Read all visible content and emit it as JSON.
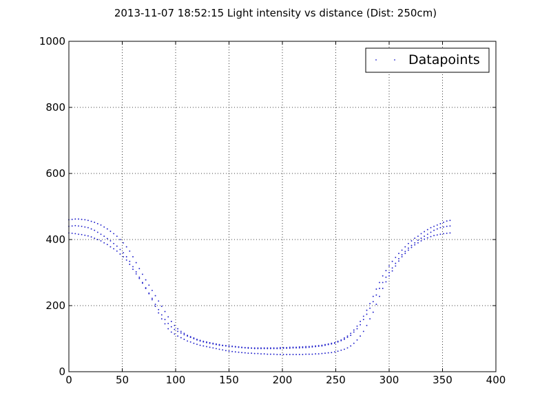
{
  "chart_data": {
    "type": "scatter",
    "title": "2013-11-07 18:52:15 Light intensity vs distance (Dist: 250cm)",
    "xlabel": "",
    "ylabel": "",
    "xlim": [
      0,
      400
    ],
    "ylim": [
      0,
      1000
    ],
    "xticks": [
      0,
      50,
      100,
      150,
      200,
      250,
      300,
      350,
      400
    ],
    "yticks": [
      0,
      200,
      400,
      600,
      800,
      1000
    ],
    "grid": true,
    "legend_position": "top-right",
    "point_color": "#2222cc",
    "series": [
      {
        "name": "Datapoints",
        "x": [
          0,
          3,
          6,
          9,
          12,
          15,
          18,
          21,
          24,
          27,
          30,
          33,
          36,
          39,
          42,
          45,
          48,
          51,
          54,
          57,
          60,
          63,
          66,
          69,
          72,
          75,
          78,
          81,
          84,
          87,
          90,
          93,
          96,
          99,
          102,
          105,
          108,
          111,
          114,
          117,
          120,
          123,
          126,
          129,
          132,
          135,
          138,
          141,
          144,
          147,
          150,
          153,
          156,
          159,
          162,
          165,
          168,
          171,
          174,
          177,
          180,
          183,
          186,
          189,
          192,
          195,
          198,
          201,
          204,
          207,
          210,
          213,
          216,
          219,
          222,
          225,
          228,
          231,
          234,
          237,
          240,
          243,
          246,
          249,
          252,
          255,
          258,
          261,
          264,
          267,
          270,
          273,
          276,
          279,
          282,
          285,
          288,
          291,
          294,
          297,
          300,
          303,
          306,
          309,
          312,
          315,
          318,
          321,
          324,
          327,
          330,
          333,
          336,
          339,
          342,
          345,
          348,
          351,
          354,
          357
        ],
        "y_set_1": [
          420,
          419,
          418,
          416,
          415,
          413,
          411,
          408,
          404,
          400,
          396,
          390,
          385,
          378,
          372,
          365,
          356,
          348,
          338,
          325,
          310,
          296,
          282,
          268,
          252,
          236,
          218,
          198,
          178,
          160,
          145,
          130,
          120,
          114,
          108,
          103,
          98,
          93,
          90,
          86,
          83,
          80,
          78,
          76,
          74,
          72,
          70,
          68,
          66,
          64,
          62,
          61,
          60,
          59,
          58,
          57,
          56,
          56,
          55,
          55,
          54,
          54,
          53,
          53,
          53,
          52,
          52,
          52,
          52,
          52,
          52,
          52,
          52,
          52,
          53,
          53,
          53,
          54,
          54,
          55,
          56,
          57,
          58,
          60,
          62,
          65,
          68,
          72,
          78,
          86,
          96,
          108,
          122,
          140,
          160,
          180,
          204,
          228,
          252,
          272,
          290,
          305,
          320,
          335,
          348,
          358,
          368,
          376,
          384,
          390,
          396,
          401,
          405,
          409,
          412,
          414,
          416,
          418,
          419,
          420
        ],
        "y_set_2": [
          440,
          441,
          442,
          441,
          440,
          438,
          436,
          432,
          428,
          422,
          416,
          410,
          403,
          396,
          388,
          380,
          370,
          360,
          348,
          334,
          318,
          302,
          286,
          270,
          254,
          238,
          222,
          204,
          188,
          172,
          158,
          146,
          136,
          128,
          122,
          117,
          112,
          108,
          104,
          100,
          96,
          93,
          90,
          88,
          86,
          84,
          82,
          80,
          79,
          78,
          77,
          76,
          75,
          74,
          73,
          72,
          71,
          71,
          70,
          70,
          70,
          70,
          70,
          70,
          70,
          70,
          70,
          71,
          71,
          71,
          72,
          72,
          72,
          73,
          73,
          74,
          75,
          76,
          77,
          78,
          80,
          82,
          84,
          86,
          90,
          94,
          98,
          104,
          110,
          120,
          130,
          142,
          158,
          174,
          192,
          212,
          232,
          252,
          270,
          286,
          300,
          314,
          328,
          342,
          354,
          364,
          374,
          382,
          390,
          398,
          404,
          410,
          416,
          422,
          428,
          432,
          436,
          438,
          440,
          441
        ],
        "y_set_3": [
          460,
          461,
          462,
          462,
          461,
          460,
          458,
          455,
          452,
          448,
          444,
          438,
          432,
          425,
          418,
          410,
          400,
          390,
          378,
          365,
          348,
          330,
          312,
          295,
          278,
          262,
          246,
          230,
          214,
          198,
          182,
          166,
          152,
          140,
          130,
          122,
          116,
          110,
          106,
          102,
          98,
          95,
          92,
          90,
          88,
          86,
          84,
          82,
          80,
          79,
          78,
          77,
          76,
          75,
          74,
          73,
          73,
          72,
          72,
          72,
          72,
          72,
          72,
          72,
          72,
          72,
          73,
          73,
          73,
          74,
          74,
          74,
          75,
          75,
          76,
          76,
          77,
          78,
          79,
          80,
          82,
          84,
          86,
          88,
          92,
          96,
          102,
          108,
          116,
          126,
          138,
          152,
          168,
          186,
          206,
          228,
          250,
          270,
          290,
          306,
          320,
          334,
          346,
          358,
          368,
          378,
          388,
          396,
          404,
          410,
          418,
          424,
          430,
          436,
          440,
          444,
          448,
          452,
          456,
          458
        ]
      }
    ]
  }
}
